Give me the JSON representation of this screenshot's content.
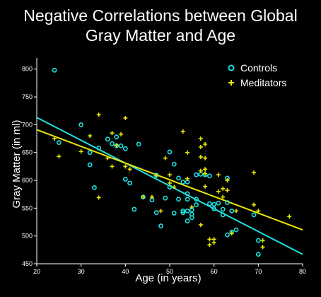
{
  "chart_data": {
    "type": "scatter",
    "title_lines": [
      "Negative Correlations between Global",
      "Gray Matter and Age"
    ],
    "xlabel": "Age (in years)",
    "ylabel": "Gray Matter (in ml)",
    "xlim": [
      20,
      80
    ],
    "ylim": [
      450,
      820
    ],
    "x_ticks": [
      20,
      30,
      40,
      50,
      60,
      70,
      80
    ],
    "y_ticks": [
      450,
      500,
      550,
      600,
      650,
      700,
      750,
      800
    ],
    "grid": false,
    "legend_position": "top-right",
    "series": [
      {
        "name": "Controls",
        "marker": "circle",
        "color": "#1ee0e0",
        "points": [
          [
            24,
            798
          ],
          [
            25,
            668
          ],
          [
            30,
            700
          ],
          [
            32,
            650
          ],
          [
            32,
            628
          ],
          [
            33,
            587
          ],
          [
            34,
            658
          ],
          [
            36,
            674
          ],
          [
            37,
            666
          ],
          [
            38,
            678
          ],
          [
            38,
            662
          ],
          [
            39,
            662
          ],
          [
            40,
            657
          ],
          [
            40,
            602
          ],
          [
            41,
            595
          ],
          [
            42,
            548
          ],
          [
            43,
            665
          ],
          [
            44,
            570
          ],
          [
            46,
            565
          ],
          [
            47,
            609
          ],
          [
            47,
            542
          ],
          [
            48,
            518
          ],
          [
            49,
            568
          ],
          [
            50,
            651
          ],
          [
            50,
            588
          ],
          [
            51,
            629
          ],
          [
            51,
            541
          ],
          [
            52,
            604
          ],
          [
            52,
            566
          ],
          [
            53,
            597
          ],
          [
            53,
            542
          ],
          [
            53,
            545
          ],
          [
            54,
            597
          ],
          [
            54,
            576
          ],
          [
            54,
            566
          ],
          [
            54,
            545
          ],
          [
            54,
            527
          ],
          [
            55,
            547
          ],
          [
            55,
            533
          ],
          [
            55,
            539
          ],
          [
            56,
            566
          ],
          [
            56,
            556
          ],
          [
            56,
            610
          ],
          [
            57,
            611
          ],
          [
            58,
            610
          ],
          [
            59,
            608
          ],
          [
            59,
            558
          ],
          [
            60,
            557
          ],
          [
            60,
            549
          ],
          [
            61,
            559
          ],
          [
            62,
            548
          ],
          [
            62,
            538
          ],
          [
            63,
            560
          ],
          [
            63,
            604
          ],
          [
            63,
            502
          ],
          [
            64,
            545
          ],
          [
            64,
            507
          ],
          [
            65,
            511
          ],
          [
            69,
            538
          ],
          [
            70,
            492
          ],
          [
            70,
            467
          ]
        ]
      },
      {
        "name": "Meditators",
        "marker": "plus",
        "color": "#e8e800",
        "points": [
          [
            24,
            675
          ],
          [
            25,
            643
          ],
          [
            30,
            652
          ],
          [
            32,
            680
          ],
          [
            34,
            718
          ],
          [
            34,
            569
          ],
          [
            36,
            640
          ],
          [
            37,
            625
          ],
          [
            37,
            685
          ],
          [
            38,
            663
          ],
          [
            39,
            683
          ],
          [
            40,
            712
          ],
          [
            40,
            625
          ],
          [
            41,
            620
          ],
          [
            44,
            570
          ],
          [
            46,
            570
          ],
          [
            47,
            609
          ],
          [
            48,
            545
          ],
          [
            49,
            640
          ],
          [
            50,
            610
          ],
          [
            50,
            595
          ],
          [
            51,
            588
          ],
          [
            53,
            688
          ],
          [
            54,
            650
          ],
          [
            54,
            603
          ],
          [
            55,
            552
          ],
          [
            57,
            675
          ],
          [
            57,
            660
          ],
          [
            58,
            665
          ],
          [
            57,
            642
          ],
          [
            57,
            617
          ],
          [
            57,
            520
          ],
          [
            58,
            640
          ],
          [
            58,
            620
          ],
          [
            58,
            612
          ],
          [
            58,
            589
          ],
          [
            59,
            494
          ],
          [
            59,
            484
          ],
          [
            60,
            488
          ],
          [
            60,
            494
          ],
          [
            61,
            610
          ],
          [
            61,
            580
          ],
          [
            62,
            585
          ],
          [
            62,
            570
          ],
          [
            63,
            600
          ],
          [
            63,
            582
          ],
          [
            64,
            505
          ],
          [
            65,
            545
          ],
          [
            69,
            614
          ],
          [
            69,
            556
          ],
          [
            70,
            545
          ],
          [
            71,
            480
          ],
          [
            77,
            535
          ],
          [
            71,
            492
          ]
        ]
      }
    ],
    "trend_lines": [
      {
        "series": "Controls",
        "color": "#1ee0e0",
        "x": [
          20,
          80
        ],
        "y": [
          713,
          467
        ]
      },
      {
        "series": "Meditators",
        "color": "#e8e800",
        "x": [
          20,
          80
        ],
        "y": [
          691,
          511
        ]
      }
    ]
  }
}
